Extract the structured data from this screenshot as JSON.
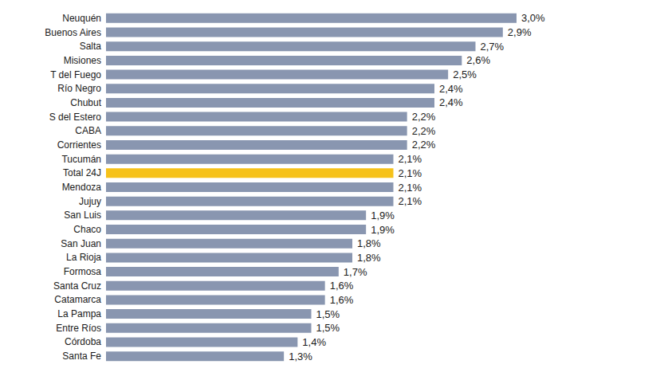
{
  "chart_data": {
    "type": "bar",
    "orientation": "horizontal",
    "categories": [
      "Neuquén",
      "Buenos Aires",
      "Salta",
      "Misiones",
      "T del Fuego",
      "Río Negro",
      "Chubut",
      "S del Estero",
      "CABA",
      "Corrientes",
      "Tucumán",
      "Total 24J",
      "Mendoza",
      "Jujuy",
      "San Luis",
      "Chaco",
      "San Juan",
      "La Rioja",
      "Formosa",
      "Santa Cruz",
      "Catamarca",
      "La Pampa",
      "Entre Ríos",
      "Córdoba",
      "Santa Fe"
    ],
    "values": [
      3.0,
      2.9,
      2.7,
      2.6,
      2.5,
      2.4,
      2.4,
      2.2,
      2.2,
      2.2,
      2.1,
      2.1,
      2.1,
      2.1,
      1.9,
      1.9,
      1.8,
      1.8,
      1.7,
      1.6,
      1.6,
      1.5,
      1.5,
      1.4,
      1.3
    ],
    "value_labels": [
      "3,0%",
      "2,9%",
      "2,7%",
      "2,6%",
      "2,5%",
      "2,4%",
      "2,4%",
      "2,2%",
      "2,2%",
      "2,2%",
      "2,1%",
      "2,1%",
      "2,1%",
      "2,1%",
      "1,9%",
      "1,9%",
      "1,8%",
      "1,8%",
      "1,7%",
      "1,6%",
      "1,6%",
      "1,5%",
      "1,5%",
      "1,4%",
      "1,3%"
    ],
    "colors": [
      "#8996b0",
      "#8996b0",
      "#8996b0",
      "#8996b0",
      "#8996b0",
      "#8996b0",
      "#8996b0",
      "#8996b0",
      "#8996b0",
      "#8996b0",
      "#8996b0",
      "#f6c21a",
      "#8996b0",
      "#8996b0",
      "#8996b0",
      "#8996b0",
      "#8996b0",
      "#8996b0",
      "#8996b0",
      "#8996b0",
      "#8996b0",
      "#8996b0",
      "#8996b0",
      "#8996b0",
      "#8996b0"
    ],
    "xlim": [
      0,
      3.0
    ],
    "data_labels": true,
    "tick_labels": "y",
    "grid": false
  }
}
